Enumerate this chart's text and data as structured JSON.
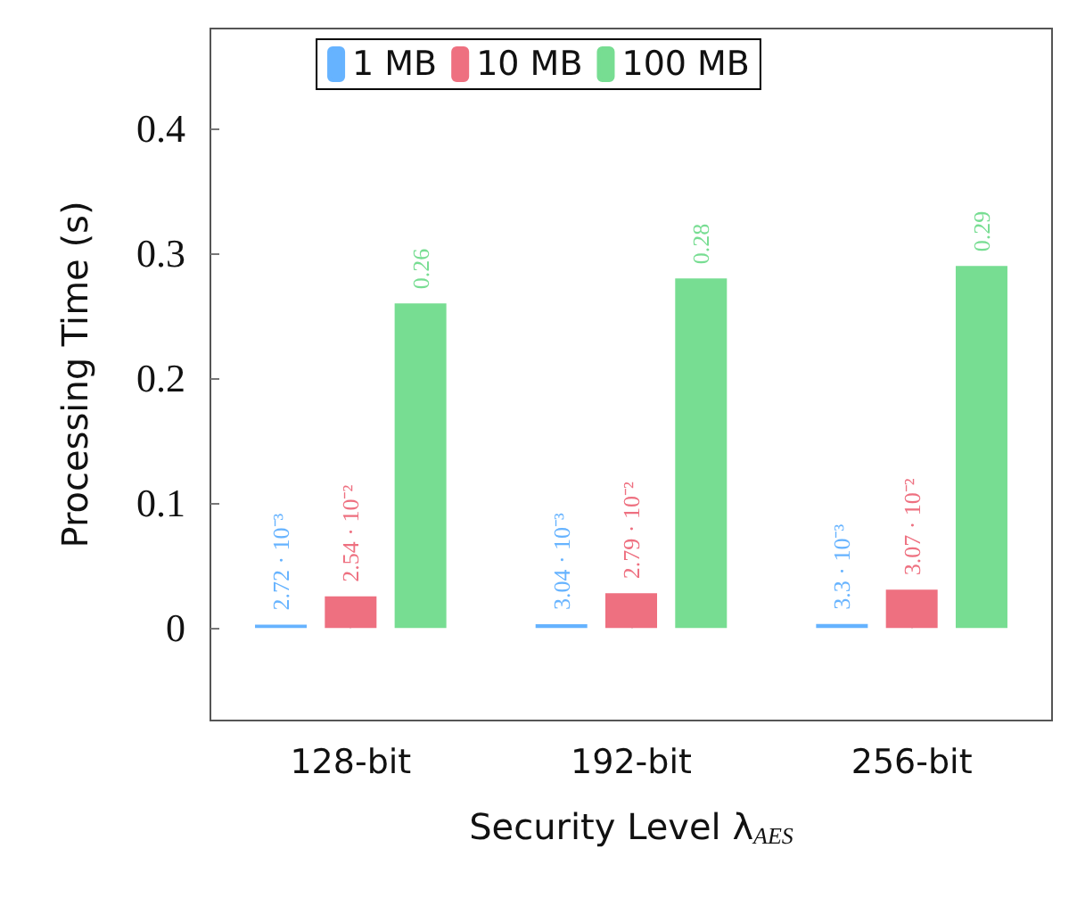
{
  "chart_data": {
    "type": "bar",
    "xlabel": "Security Level λ$_{AES}$",
    "ylabel": "Processing Time (s)",
    "categories": [
      "128-bit",
      "192-bit",
      "256-bit"
    ],
    "series": [
      {
        "name": "1 MB",
        "color": "#66b3ff",
        "values": [
          0.00272,
          0.00304,
          0.0033
        ],
        "value_labels": [
          "2.72 · 10⁻³",
          "3.04 · 10⁻³",
          "3.3 · 10⁻³"
        ]
      },
      {
        "name": "10 MB",
        "color": "#ee7080",
        "values": [
          0.0254,
          0.0279,
          0.0307
        ],
        "value_labels": [
          "2.54 · 10⁻²",
          "2.79 · 10⁻²",
          "3.07 · 10⁻²"
        ]
      },
      {
        "name": "100 MB",
        "color": "#77dd92",
        "values": [
          0.26,
          0.28,
          0.29
        ],
        "value_labels": [
          "0.26",
          "0.28",
          "0.29"
        ]
      }
    ],
    "ylim": [
      -0.074,
      0.48
    ],
    "yticks": [
      0,
      0.1,
      0.2,
      0.3,
      0.4
    ],
    "legend": "top",
    "grid": false
  }
}
